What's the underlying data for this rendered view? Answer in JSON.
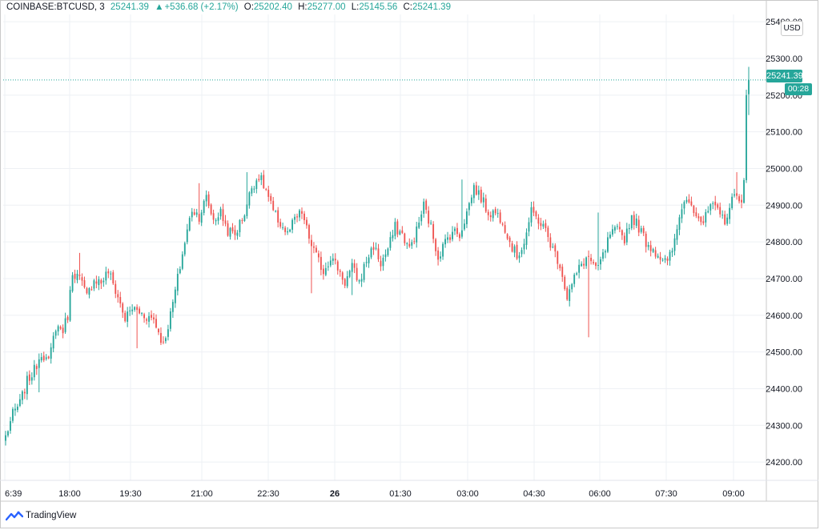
{
  "legend": {
    "symbol": "COINBASE:BTCUSD, 3",
    "last": "25241.39",
    "change_arrow": "▲",
    "change": "+536.68 (+2.17%)",
    "o_label": "O:",
    "o_value": "25202.40",
    "h_label": "H:",
    "h_value": "25277.00",
    "l_label": "L:",
    "l_value": "25145.56",
    "c_label": "C:",
    "c_value": "25241.39"
  },
  "price_axis": {
    "currency": "USD",
    "ticks": [
      "25400.00",
      "25300.00",
      "25200.00",
      "25100.00",
      "25000.00",
      "24900.00",
      "24800.00",
      "24700.00",
      "24600.00",
      "24500.00",
      "24400.00",
      "24300.00",
      "24200.00"
    ],
    "current_price_label": "25241.39",
    "countdown": "00:28"
  },
  "time_axis": {
    "ticks": [
      "6:39",
      "18:00",
      "19:30",
      "21:00",
      "22:30",
      "26",
      "01:30",
      "03:00",
      "04:30",
      "06:00",
      "07:30",
      "09:00"
    ]
  },
  "brand": {
    "name": "TradingView"
  },
  "colors": {
    "up": "#26a69a",
    "down": "#ef5350",
    "grid": "#f0f3fa"
  },
  "chart_data": {
    "type": "candlestick",
    "symbol": "COINBASE:BTCUSD",
    "interval": "3",
    "ylim": [
      24150,
      25420
    ],
    "grid": true,
    "last_price": 25241.39,
    "checkpoints": [
      {
        "t": 0,
        "p": 24270
      },
      {
        "t": 3,
        "p": 24330
      },
      {
        "t": 6,
        "p": 24360
      },
      {
        "t": 9,
        "p": 24420
      },
      {
        "t": 12,
        "p": 24450
      },
      {
        "t": 15,
        "p": 24500
      },
      {
        "t": 18,
        "p": 24470
      },
      {
        "t": 21,
        "p": 24570
      },
      {
        "t": 24,
        "p": 24560
      },
      {
        "t": 26,
        "p": 24600
      },
      {
        "t": 28,
        "p": 24720
      },
      {
        "t": 31,
        "p": 24700
      },
      {
        "t": 34,
        "p": 24650
      },
      {
        "t": 37,
        "p": 24700
      },
      {
        "t": 40,
        "p": 24690
      },
      {
        "t": 43,
        "p": 24720
      },
      {
        "t": 47,
        "p": 24650
      },
      {
        "t": 50,
        "p": 24590
      },
      {
        "t": 53,
        "p": 24620
      },
      {
        "t": 58,
        "p": 24600
      },
      {
        "t": 62,
        "p": 24590
      },
      {
        "t": 66,
        "p": 24520
      },
      {
        "t": 69,
        "p": 24600
      },
      {
        "t": 72,
        "p": 24700
      },
      {
        "t": 75,
        "p": 24800
      },
      {
        "t": 78,
        "p": 24890
      },
      {
        "t": 81,
        "p": 24870
      },
      {
        "t": 84,
        "p": 24920
      },
      {
        "t": 87,
        "p": 24860
      },
      {
        "t": 90,
        "p": 24880
      },
      {
        "t": 93,
        "p": 24830
      },
      {
        "t": 96,
        "p": 24820
      },
      {
        "t": 100,
        "p": 24880
      },
      {
        "t": 103,
        "p": 24950
      },
      {
        "t": 106,
        "p": 24980
      },
      {
        "t": 109,
        "p": 24940
      },
      {
        "t": 112,
        "p": 24880
      },
      {
        "t": 115,
        "p": 24850
      },
      {
        "t": 118,
        "p": 24820
      },
      {
        "t": 121,
        "p": 24860
      },
      {
        "t": 124,
        "p": 24880
      },
      {
        "t": 127,
        "p": 24810
      },
      {
        "t": 130,
        "p": 24760
      },
      {
        "t": 133,
        "p": 24720
      },
      {
        "t": 136,
        "p": 24760
      },
      {
        "t": 139,
        "p": 24730
      },
      {
        "t": 142,
        "p": 24690
      },
      {
        "t": 145,
        "p": 24730
      },
      {
        "t": 148,
        "p": 24690
      },
      {
        "t": 151,
        "p": 24750
      },
      {
        "t": 154,
        "p": 24790
      },
      {
        "t": 157,
        "p": 24740
      },
      {
        "t": 160,
        "p": 24780
      },
      {
        "t": 163,
        "p": 24840
      },
      {
        "t": 166,
        "p": 24820
      },
      {
        "t": 169,
        "p": 24780
      },
      {
        "t": 172,
        "p": 24830
      },
      {
        "t": 175,
        "p": 24900
      },
      {
        "t": 178,
        "p": 24840
      },
      {
        "t": 181,
        "p": 24760
      },
      {
        "t": 184,
        "p": 24800
      },
      {
        "t": 187,
        "p": 24830
      },
      {
        "t": 190,
        "p": 24820
      },
      {
        "t": 193,
        "p": 24880
      },
      {
        "t": 196,
        "p": 24950
      },
      {
        "t": 199,
        "p": 24920
      },
      {
        "t": 202,
        "p": 24880
      },
      {
        "t": 205,
        "p": 24880
      },
      {
        "t": 208,
        "p": 24860
      },
      {
        "t": 211,
        "p": 24800
      },
      {
        "t": 214,
        "p": 24760
      },
      {
        "t": 217,
        "p": 24800
      },
      {
        "t": 220,
        "p": 24880
      },
      {
        "t": 223,
        "p": 24860
      },
      {
        "t": 226,
        "p": 24830
      },
      {
        "t": 229,
        "p": 24780
      },
      {
        "t": 232,
        "p": 24740
      },
      {
        "t": 235,
        "p": 24650
      },
      {
        "t": 238,
        "p": 24700
      },
      {
        "t": 241,
        "p": 24740
      },
      {
        "t": 244,
        "p": 24760
      },
      {
        "t": 247,
        "p": 24720
      },
      {
        "t": 250,
        "p": 24760
      },
      {
        "t": 253,
        "p": 24820
      },
      {
        "t": 256,
        "p": 24830
      },
      {
        "t": 259,
        "p": 24810
      },
      {
        "t": 262,
        "p": 24870
      },
      {
        "t": 265,
        "p": 24840
      },
      {
        "t": 268,
        "p": 24800
      },
      {
        "t": 271,
        "p": 24780
      },
      {
        "t": 274,
        "p": 24760
      },
      {
        "t": 277,
        "p": 24740
      },
      {
        "t": 280,
        "p": 24800
      },
      {
        "t": 283,
        "p": 24900
      },
      {
        "t": 286,
        "p": 24920
      },
      {
        "t": 289,
        "p": 24880
      },
      {
        "t": 292,
        "p": 24850
      },
      {
        "t": 295,
        "p": 24900
      },
      {
        "t": 298,
        "p": 24880
      },
      {
        "t": 301,
        "p": 24860
      },
      {
        "t": 304,
        "p": 24910
      },
      {
        "t": 306,
        "p": 24940
      },
      {
        "t": 308,
        "p": 24900
      },
      {
        "t": 309,
        "p": 24960
      },
      {
        "t": 310,
        "p": 25200
      },
      {
        "t": 311,
        "p": 25241.39
      }
    ],
    "spikes": [
      {
        "t": 14,
        "low": 24390
      },
      {
        "t": 31,
        "high": 24770
      },
      {
        "t": 55,
        "low": 24510
      },
      {
        "t": 81,
        "high": 24960
      },
      {
        "t": 101,
        "high": 24990
      },
      {
        "t": 128,
        "low": 24660
      },
      {
        "t": 145,
        "low": 24655
      },
      {
        "t": 191,
        "high": 24970
      },
      {
        "t": 244,
        "low": 24540
      },
      {
        "t": 248,
        "high": 24880
      },
      {
        "t": 262,
        "high": 24870
      },
      {
        "t": 306,
        "high": 24990
      },
      {
        "t": 311,
        "high": 25277.0,
        "low": 25145.56
      }
    ]
  }
}
